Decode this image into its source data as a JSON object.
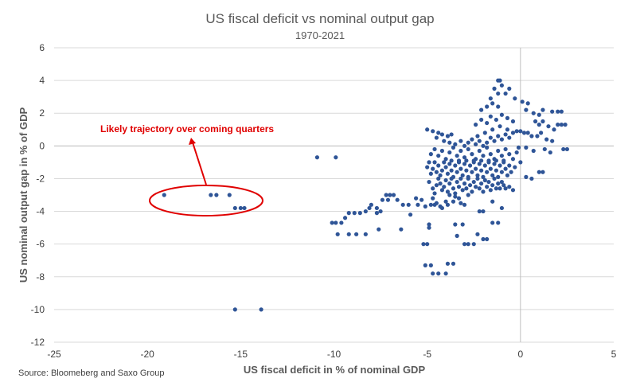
{
  "chart_data": {
    "type": "scatter",
    "title": "US fiscal deficit vs nominal output gap",
    "subtitle": "1970-2021",
    "xlabel": "US fiscal deficit in % of nominal GDP",
    "ylabel": "US nominal output gap in % of GDP",
    "xlim": [
      -25,
      5
    ],
    "ylim": [
      -12,
      6
    ],
    "xticks": [
      "-25",
      "-20",
      "-15",
      "-10",
      "-5",
      "0",
      "5"
    ],
    "yticks": [
      "-12",
      "-10",
      "-8",
      "-6",
      "-4",
      "-2",
      "0",
      "2",
      "4",
      "6"
    ],
    "grid": "horizontal",
    "marker_color": "#2f5597",
    "annotation": {
      "text": "Likely trajectory over coming quarters",
      "color": "#e00000",
      "target_x": -17.6,
      "target_y": -3.4
    },
    "source": "Source: Bloomeberg and Saxo Group",
    "points": [
      [
        -19.1,
        -3.0
      ],
      [
        -16.6,
        -3.0
      ],
      [
        -16.3,
        -3.0
      ],
      [
        -15.6,
        -3.0
      ],
      [
        -15.3,
        -3.8
      ],
      [
        -15.0,
        -3.8
      ],
      [
        -14.8,
        -3.8
      ],
      [
        -15.3,
        -10.0
      ],
      [
        -13.9,
        -10.0
      ],
      [
        -10.9,
        -0.7
      ],
      [
        -9.9,
        -0.7
      ],
      [
        -10.1,
        -4.7
      ],
      [
        -9.9,
        -4.7
      ],
      [
        -9.6,
        -4.7
      ],
      [
        -9.8,
        -5.4
      ],
      [
        -9.2,
        -5.4
      ],
      [
        -8.8,
        -5.4
      ],
      [
        -8.3,
        -5.4
      ],
      [
        -7.6,
        -5.1
      ],
      [
        -9.4,
        -4.4
      ],
      [
        -9.2,
        -4.1
      ],
      [
        -8.9,
        -4.1
      ],
      [
        -8.6,
        -4.1
      ],
      [
        -8.3,
        -4.0
      ],
      [
        -8.1,
        -3.8
      ],
      [
        -8.0,
        -3.6
      ],
      [
        -7.7,
        -3.8
      ],
      [
        -7.4,
        -3.3
      ],
      [
        -7.2,
        -3.0
      ],
      [
        -7.1,
        -3.3
      ],
      [
        -7.0,
        -3.0
      ],
      [
        -6.8,
        -3.0
      ],
      [
        -6.6,
        -3.3
      ],
      [
        -6.3,
        -3.6
      ],
      [
        -6.0,
        -3.6
      ],
      [
        -7.5,
        -4.0
      ],
      [
        -7.7,
        -4.1
      ],
      [
        -6.4,
        -5.1
      ],
      [
        -5.5,
        -3.6
      ],
      [
        -5.3,
        -3.3
      ],
      [
        -5.6,
        -3.2
      ],
      [
        -5.1,
        -3.7
      ],
      [
        -5.9,
        -4.2
      ],
      [
        -5.2,
        -6.0
      ],
      [
        -5.0,
        -6.0
      ],
      [
        -5.1,
        -7.3
      ],
      [
        -4.8,
        -7.3
      ],
      [
        -4.9,
        -4.8
      ],
      [
        -4.9,
        -5.0
      ],
      [
        -4.7,
        -7.8
      ],
      [
        -4.4,
        -7.8
      ],
      [
        -4.0,
        -7.8
      ],
      [
        -3.9,
        -7.2
      ],
      [
        -3.6,
        -7.2
      ],
      [
        -3.4,
        -5.5
      ],
      [
        -3.5,
        -4.8
      ],
      [
        -3.1,
        -4.8
      ],
      [
        -3.0,
        -6.0
      ],
      [
        -2.8,
        -6.0
      ],
      [
        -2.5,
        -6.0
      ],
      [
        -2.0,
        -5.7
      ],
      [
        -1.8,
        -5.7
      ],
      [
        -2.3,
        -5.4
      ],
      [
        -1.5,
        -4.7
      ],
      [
        -1.2,
        -4.7
      ],
      [
        -2.2,
        -4.0
      ],
      [
        -2.0,
        -4.0
      ],
      [
        -1.0,
        -3.8
      ],
      [
        -1.5,
        -3.4
      ],
      [
        -4.7,
        -3.2
      ],
      [
        -4.5,
        -3.5
      ],
      [
        -4.2,
        -3.8
      ],
      [
        -4.0,
        -3.4
      ],
      [
        -3.8,
        -3.0
      ],
      [
        -3.5,
        -3.1
      ],
      [
        -3.3,
        -3.2
      ],
      [
        -3.2,
        -3.5
      ],
      [
        -4.8,
        -3.6
      ],
      [
        -4.6,
        -3.6
      ],
      [
        -4.3,
        -3.7
      ],
      [
        -3.9,
        -3.6
      ],
      [
        -3.6,
        -3.4
      ],
      [
        -3.0,
        -3.6
      ],
      [
        -2.8,
        -3.0
      ],
      [
        -4.9,
        -2.2
      ],
      [
        -4.7,
        -2.6
      ],
      [
        -4.6,
        -2.9
      ],
      [
        -4.5,
        -2.4
      ],
      [
        -4.4,
        -2.0
      ],
      [
        -4.3,
        -2.3
      ],
      [
        -4.2,
        -2.7
      ],
      [
        -4.1,
        -2.5
      ],
      [
        -4.0,
        -2.1
      ],
      [
        -3.9,
        -2.8
      ],
      [
        -3.8,
        -2.3
      ],
      [
        -3.7,
        -2.0
      ],
      [
        -3.6,
        -2.6
      ],
      [
        -3.5,
        -2.9
      ],
      [
        -3.4,
        -2.2
      ],
      [
        -3.3,
        -2.5
      ],
      [
        -3.2,
        -2.0
      ],
      [
        -3.1,
        -2.7
      ],
      [
        -3.0,
        -2.3
      ],
      [
        -2.9,
        -2.6
      ],
      [
        -2.8,
        -2.0
      ],
      [
        -2.7,
        -2.4
      ],
      [
        -2.6,
        -2.8
      ],
      [
        -2.5,
        -2.2
      ],
      [
        -2.4,
        -2.5
      ],
      [
        -2.3,
        -2.0
      ],
      [
        -2.2,
        -2.6
      ],
      [
        -2.1,
        -2.3
      ],
      [
        -2.0,
        -2.8
      ],
      [
        -1.9,
        -2.1
      ],
      [
        -1.8,
        -2.5
      ],
      [
        -1.7,
        -2.2
      ],
      [
        -1.6,
        -2.7
      ],
      [
        -1.5,
        -2.4
      ],
      [
        -1.4,
        -2.0
      ],
      [
        -1.3,
        -2.6
      ],
      [
        -1.2,
        -2.3
      ],
      [
        -1.1,
        -2.6
      ],
      [
        -1.0,
        -2.2
      ],
      [
        -0.9,
        -2.4
      ],
      [
        -0.8,
        -2.6
      ],
      [
        -0.6,
        -2.5
      ],
      [
        -0.4,
        -2.7
      ],
      [
        -5.0,
        -1.3
      ],
      [
        -4.9,
        -1.0
      ],
      [
        -4.8,
        -1.7
      ],
      [
        -4.7,
        -1.4
      ],
      [
        -4.6,
        -1.0
      ],
      [
        -4.5,
        -1.6
      ],
      [
        -4.4,
        -1.2
      ],
      [
        -4.3,
        -1.8
      ],
      [
        -4.2,
        -1.5
      ],
      [
        -4.1,
        -1.0
      ],
      [
        -4.0,
        -1.3
      ],
      [
        -3.9,
        -1.7
      ],
      [
        -3.8,
        -1.1
      ],
      [
        -3.7,
        -1.5
      ],
      [
        -3.6,
        -1.9
      ],
      [
        -3.5,
        -1.2
      ],
      [
        -3.4,
        -1.6
      ],
      [
        -3.3,
        -1.0
      ],
      [
        -3.2,
        -1.4
      ],
      [
        -3.1,
        -1.8
      ],
      [
        -3.0,
        -1.1
      ],
      [
        -2.9,
        -1.5
      ],
      [
        -2.8,
        -1.9
      ],
      [
        -2.7,
        -1.2
      ],
      [
        -2.6,
        -1.6
      ],
      [
        -2.5,
        -1.0
      ],
      [
        -2.4,
        -1.4
      ],
      [
        -2.3,
        -1.8
      ],
      [
        -2.2,
        -1.1
      ],
      [
        -2.1,
        -1.5
      ],
      [
        -2.0,
        -1.9
      ],
      [
        -1.9,
        -1.2
      ],
      [
        -1.8,
        -1.6
      ],
      [
        -1.7,
        -1.0
      ],
      [
        -1.6,
        -1.4
      ],
      [
        -1.5,
        -1.8
      ],
      [
        -1.4,
        -1.1
      ],
      [
        -1.3,
        -1.5
      ],
      [
        -1.2,
        -1.9
      ],
      [
        -1.1,
        -1.2
      ],
      [
        -1.0,
        -1.6
      ],
      [
        -0.9,
        -1.0
      ],
      [
        -0.8,
        -1.4
      ],
      [
        -0.7,
        -1.8
      ],
      [
        -0.6,
        -1.2
      ],
      [
        -0.5,
        -1.6
      ],
      [
        -0.3,
        -1.3
      ],
      [
        -4.8,
        -0.5
      ],
      [
        -4.6,
        -0.2
      ],
      [
        -4.4,
        -0.6
      ],
      [
        -4.2,
        -0.3
      ],
      [
        -4.0,
        -0.8
      ],
      [
        -3.8,
        -0.4
      ],
      [
        -3.6,
        -0.1
      ],
      [
        -3.4,
        -0.6
      ],
      [
        -3.2,
        -0.3
      ],
      [
        -3.0,
        -0.7
      ],
      [
        -2.8,
        -0.2
      ],
      [
        -2.6,
        -0.5
      ],
      [
        -2.4,
        -0.8
      ],
      [
        -2.2,
        -0.3
      ],
      [
        -2.0,
        -0.6
      ],
      [
        -1.8,
        -0.1
      ],
      [
        -1.6,
        -0.5
      ],
      [
        -1.4,
        -0.8
      ],
      [
        -1.2,
        -0.3
      ],
      [
        -1.0,
        -0.6
      ],
      [
        -0.8,
        -0.2
      ],
      [
        -0.6,
        -0.5
      ],
      [
        -0.4,
        -0.8
      ],
      [
        -0.2,
        -0.4
      ],
      [
        -3.7,
        -0.9
      ],
      [
        -3.3,
        -0.9
      ],
      [
        -2.9,
        -0.9
      ],
      [
        -2.5,
        -0.9
      ],
      [
        -2.1,
        -0.9
      ],
      [
        -1.7,
        -0.9
      ],
      [
        -1.3,
        -0.9
      ],
      [
        -0.9,
        -0.9
      ],
      [
        -5.0,
        1.0
      ],
      [
        -4.7,
        0.9
      ],
      [
        -4.4,
        0.8
      ],
      [
        -4.2,
        0.7
      ],
      [
        -3.9,
        0.6
      ],
      [
        -3.7,
        0.7
      ],
      [
        -4.5,
        0.5
      ],
      [
        -4.1,
        0.3
      ],
      [
        -3.8,
        0.2
      ],
      [
        -3.5,
        0.1
      ],
      [
        -3.2,
        0.3
      ],
      [
        -3.0,
        0.0
      ],
      [
        -2.8,
        0.2
      ],
      [
        -2.6,
        0.4
      ],
      [
        -2.4,
        0.1
      ],
      [
        -2.2,
        0.3
      ],
      [
        -2.0,
        0.0
      ],
      [
        -1.8,
        0.2
      ],
      [
        -1.6,
        0.5
      ],
      [
        -1.4,
        0.3
      ],
      [
        -1.2,
        0.6
      ],
      [
        -1.0,
        0.4
      ],
      [
        -0.8,
        0.7
      ],
      [
        -0.6,
        0.5
      ],
      [
        -0.4,
        0.8
      ],
      [
        -0.2,
        0.9
      ],
      [
        0.0,
        0.9
      ],
      [
        0.2,
        0.8
      ],
      [
        0.4,
        0.8
      ],
      [
        0.6,
        0.6
      ],
      [
        -2.3,
        0.6
      ],
      [
        -1.9,
        0.8
      ],
      [
        -1.5,
        1.0
      ],
      [
        -1.1,
        1.2
      ],
      [
        -0.7,
        1.0
      ],
      [
        -2.4,
        1.3
      ],
      [
        -2.1,
        1.6
      ],
      [
        -1.8,
        1.4
      ],
      [
        -1.6,
        1.8
      ],
      [
        -1.3,
        1.6
      ],
      [
        -1.0,
        1.9
      ],
      [
        -0.7,
        1.7
      ],
      [
        -0.4,
        1.5
      ],
      [
        -2.1,
        2.2
      ],
      [
        -1.8,
        2.4
      ],
      [
        -1.5,
        2.6
      ],
      [
        -1.2,
        2.4
      ],
      [
        -1.6,
        2.9
      ],
      [
        -1.2,
        3.2
      ],
      [
        -0.8,
        3.2
      ],
      [
        -1.4,
        3.5
      ],
      [
        -1.0,
        3.7
      ],
      [
        -1.2,
        4.0
      ],
      [
        -1.1,
        4.0
      ],
      [
        -0.6,
        3.5
      ],
      [
        -0.3,
        2.9
      ],
      [
        0.1,
        2.7
      ],
      [
        0.4,
        2.6
      ],
      [
        0.3,
        2.2
      ],
      [
        0.7,
        2.0
      ],
      [
        1.0,
        1.9
      ],
      [
        1.2,
        2.2
      ],
      [
        1.7,
        2.1
      ],
      [
        2.0,
        2.1
      ],
      [
        2.2,
        2.1
      ],
      [
        0.8,
        1.5
      ],
      [
        1.0,
        1.3
      ],
      [
        1.2,
        1.5
      ],
      [
        1.5,
        1.2
      ],
      [
        1.8,
        1.0
      ],
      [
        2.0,
        1.3
      ],
      [
        2.2,
        1.3
      ],
      [
        2.4,
        1.3
      ],
      [
        0.9,
        0.6
      ],
      [
        1.1,
        0.8
      ],
      [
        1.4,
        0.4
      ],
      [
        1.7,
        0.3
      ],
      [
        1.3,
        -0.2
      ],
      [
        1.6,
        -0.4
      ],
      [
        2.3,
        -0.2
      ],
      [
        2.5,
        -0.2
      ],
      [
        -0.1,
        -0.1
      ],
      [
        0.3,
        -0.1
      ],
      [
        0.7,
        -0.3
      ],
      [
        0.0,
        -1.0
      ],
      [
        0.3,
        -1.9
      ],
      [
        0.6,
        -2.0
      ],
      [
        1.0,
        -1.6
      ],
      [
        1.2,
        -1.6
      ]
    ]
  }
}
